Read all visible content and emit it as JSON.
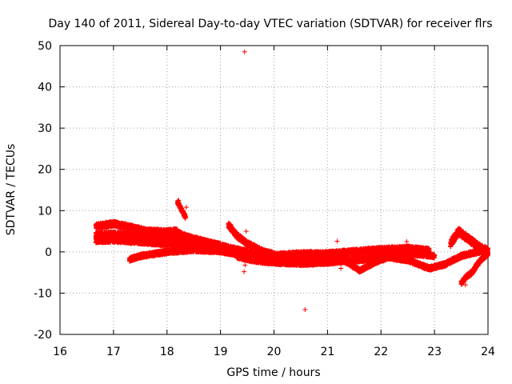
{
  "chart_data": {
    "type": "scatter",
    "title": "Day 140 of 2011, Sidereal Day-to-day VTEC variation (SDTVAR) for receiver flrs",
    "xlabel": "GPS time / hours",
    "ylabel": "SDTVAR / TECUs",
    "xlim": [
      16,
      24
    ],
    "ylim": [
      -20,
      50
    ],
    "x_ticks": [
      16,
      17,
      18,
      19,
      20,
      21,
      22,
      23,
      24
    ],
    "x_tick_labels": [
      "16",
      "17",
      "18",
      "19",
      "20",
      "21",
      "22",
      "23",
      "24"
    ],
    "y_ticks": [
      -20,
      -10,
      0,
      10,
      20,
      30,
      40,
      50
    ],
    "y_tick_labels": [
      "-20",
      "-10",
      "0",
      "10",
      "20",
      "30",
      "40",
      "50"
    ],
    "grid": true,
    "marker": "plus",
    "color": "#ff0000",
    "band_segments": [
      {
        "x": [
          16.67,
          17.0,
          17.3,
          17.6,
          18.0,
          18.2
        ],
        "y": [
          6.2,
          6.8,
          6.0,
          5.0,
          4.8,
          5.0
        ],
        "spread": 1.3
      },
      {
        "x": [
          16.67,
          17.0,
          17.5,
          18.0,
          18.5,
          19.0
        ],
        "y": [
          4.0,
          4.2,
          3.8,
          3.5,
          2.8,
          1.5
        ],
        "spread": 1.4
      },
      {
        "x": [
          16.67,
          17.0,
          17.5,
          18.0,
          18.5,
          19.0,
          19.5
        ],
        "y": [
          2.8,
          2.9,
          2.5,
          2.0,
          1.5,
          0.8,
          0.0
        ],
        "spread": 1.2
      },
      {
        "x": [
          17.3,
          17.5,
          18.0,
          18.5,
          19.0,
          19.5,
          20.0
        ],
        "y": [
          -1.8,
          -1.0,
          0.0,
          0.5,
          0.2,
          -1.0,
          -2.0
        ],
        "spread": 1.0
      },
      {
        "x": [
          18.2,
          18.4,
          18.7,
          19.0,
          19.3,
          19.6,
          20.0
        ],
        "y": [
          4.5,
          3.5,
          2.5,
          1.5,
          0.5,
          -0.5,
          -1.5
        ],
        "spread": 1.2
      },
      {
        "x": [
          19.15,
          19.3,
          19.5,
          19.8,
          20.2,
          20.6,
          21.0
        ],
        "y": [
          6.5,
          4.0,
          2.0,
          0.0,
          -1.5,
          -2.0,
          -2.0
        ],
        "spread": 1.3
      },
      {
        "x": [
          19.3,
          19.6,
          20.0,
          20.5,
          21.0,
          21.5,
          22.0
        ],
        "y": [
          -1.0,
          -2.0,
          -2.5,
          -2.8,
          -2.5,
          -2.0,
          -1.5
        ],
        "spread": 1.1
      },
      {
        "x": [
          20.0,
          20.5,
          21.0,
          21.5,
          22.0,
          22.5,
          22.9
        ],
        "y": [
          -1.0,
          -0.5,
          -0.5,
          0.0,
          0.5,
          0.8,
          0.3
        ],
        "spread": 1.3
      },
      {
        "x": [
          21.0,
          21.3,
          21.6,
          21.9,
          22.2,
          22.6,
          23.0
        ],
        "y": [
          -1.0,
          -2.0,
          -4.5,
          -2.5,
          -1.0,
          -0.5,
          -1.0
        ],
        "spread": 0.9
      },
      {
        "x": [
          22.0,
          22.5,
          22.9,
          23.2,
          23.5,
          23.8,
          24.0
        ],
        "y": [
          -1.0,
          -2.0,
          -4.0,
          -3.0,
          -1.0,
          0.0,
          0.5
        ],
        "spread": 1.0
      },
      {
        "x": [
          23.3,
          23.45,
          23.55,
          23.7,
          23.85,
          24.0
        ],
        "y": [
          2.0,
          5.0,
          4.0,
          2.5,
          1.0,
          0.0
        ],
        "spread": 1.8
      },
      {
        "x": [
          23.5,
          23.6,
          23.7,
          23.8,
          23.9,
          24.0
        ],
        "y": [
          -7.5,
          -6.0,
          -5.0,
          -3.0,
          -1.5,
          -0.5
        ],
        "spread": 1.0
      },
      {
        "x": [
          18.2,
          18.25,
          18.3,
          18.35
        ],
        "y": [
          12.0,
          10.8,
          9.6,
          8.2
        ],
        "spread": 0.8
      }
    ],
    "isolated_points": [
      {
        "x": 19.45,
        "y": 48.5
      },
      {
        "x": 20.58,
        "y": -14.0
      },
      {
        "x": 17.47,
        "y": 6.0
      },
      {
        "x": 19.44,
        "y": -4.8
      },
      {
        "x": 19.46,
        "y": -3.2
      },
      {
        "x": 21.18,
        "y": 2.6
      },
      {
        "x": 21.25,
        "y": -4.0
      },
      {
        "x": 22.48,
        "y": 2.5
      },
      {
        "x": 23.58,
        "y": -8.0
      },
      {
        "x": 19.48,
        "y": 5.0
      },
      {
        "x": 18.22,
        "y": 12.5
      },
      {
        "x": 18.36,
        "y": 10.8
      }
    ]
  }
}
